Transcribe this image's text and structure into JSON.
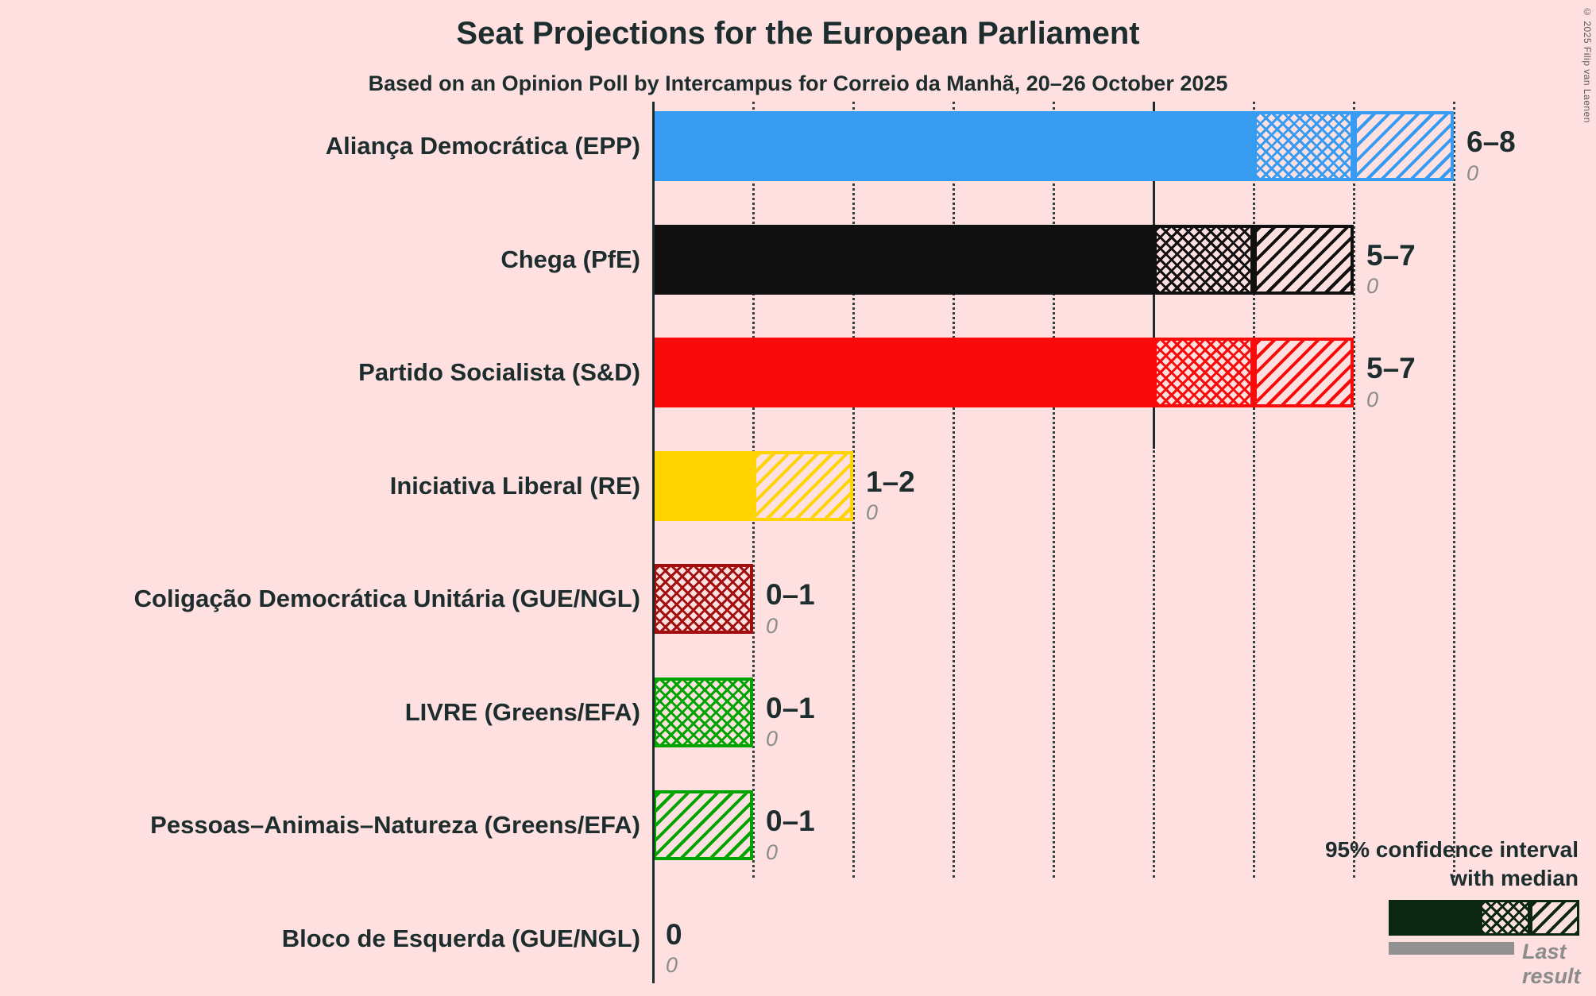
{
  "copyright": "© 2025 Filip van Laenen",
  "colors": {
    "background": "#FFE0E0",
    "text": "#1D2D2D",
    "muted": "#8C8C8C",
    "legend_sample": "#0B2611",
    "last_result_bar": "#919191"
  },
  "chart_data": {
    "type": "bar",
    "orientation": "horizontal",
    "title": "Seat Projections for the European Parliament",
    "subtitle": "Based on an Opinion Poll by Intercampus for Correio da Manhã, 20–26 October 2025",
    "unit": "seats",
    "x_axis": {
      "min": 0,
      "max": 8,
      "gridlines": [
        1,
        2,
        3,
        4,
        5,
        6,
        7,
        8
      ],
      "reference_line": 5,
      "tick_labels_visible": false
    },
    "legend": {
      "ci_line1": "95% confidence interval",
      "ci_line2": "with median",
      "last_result": "Last result"
    },
    "rows": [
      {
        "label": "Aliança Democrática (EPP)",
        "ci_low": 6,
        "median": 7,
        "ci_high": 8,
        "range_label": "6–8",
        "last_result": 0,
        "color": "#379BF2"
      },
      {
        "label": "Chega (PfE)",
        "ci_low": 5,
        "median": 6,
        "ci_high": 7,
        "range_label": "5–7",
        "last_result": 0,
        "color": "#101010"
      },
      {
        "label": "Partido Socialista (S&D)",
        "ci_low": 5,
        "median": 6,
        "ci_high": 7,
        "range_label": "5–7",
        "last_result": 0,
        "color": "#FA0B0B"
      },
      {
        "label": "Iniciativa Liberal (RE)",
        "ci_low": 1,
        "median": 1,
        "ci_high": 2,
        "range_label": "1–2",
        "last_result": 0,
        "color": "#FFD400"
      },
      {
        "label": "Coligação Democrática Unitária (GUE/NGL)",
        "ci_low": 0,
        "median": 1,
        "ci_high": 1,
        "range_label": "0–1",
        "last_result": 0,
        "color": "#A30F0F"
      },
      {
        "label": "LIVRE (Greens/EFA)",
        "ci_low": 0,
        "median": 1,
        "ci_high": 1,
        "range_label": "0–1",
        "last_result": 0,
        "color": "#00A400"
      },
      {
        "label": "Pessoas–Animais–Natureza (Greens/EFA)",
        "ci_low": 0,
        "median": 0,
        "ci_high": 1,
        "range_label": "0–1",
        "last_result": 0,
        "color": "#00A400"
      },
      {
        "label": "Bloco de Esquerda (GUE/NGL)",
        "ci_low": 0,
        "median": 0,
        "ci_high": 0,
        "range_label": "0",
        "last_result": 0
      }
    ]
  }
}
